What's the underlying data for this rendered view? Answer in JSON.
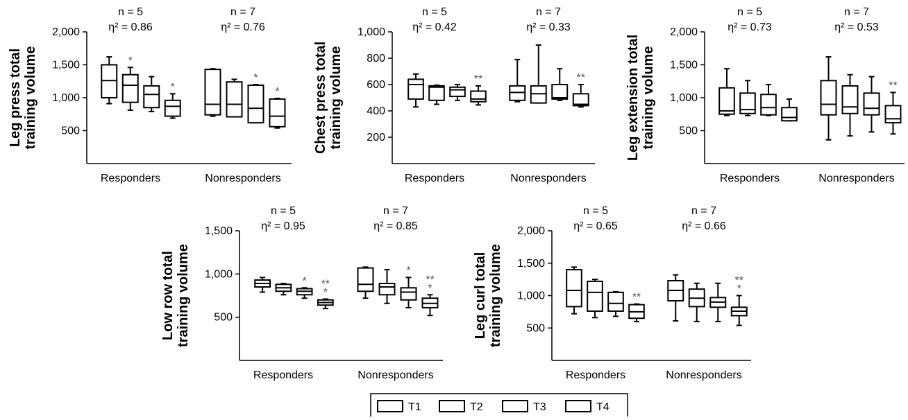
{
  "chart_data": [
    {
      "type": "box",
      "ylabel": [
        "Leg press total",
        "training volume"
      ],
      "yticks": [
        500,
        1000,
        1500,
        2000
      ],
      "ytick_labels": [
        "500",
        "1,000",
        "1,500",
        "2,000"
      ],
      "ylim": [
        0,
        2000
      ],
      "groups": [
        {
          "name": "Responders",
          "n_label": "n = 5",
          "eta_label": "η² = 0.86",
          "boxes": [
            {
              "series": "T1",
              "min": 910,
              "q1": 1000,
              "median": 1260,
              "q3": 1500,
              "max": 1620,
              "marks": []
            },
            {
              "series": "T2",
              "min": 810,
              "q1": 930,
              "median": 1190,
              "q3": 1350,
              "max": 1460,
              "marks": [
                "*"
              ]
            },
            {
              "series": "T3",
              "min": 790,
              "q1": 850,
              "median": 1050,
              "q3": 1180,
              "max": 1320,
              "marks": []
            },
            {
              "series": "T4",
              "min": 690,
              "q1": 720,
              "median": 870,
              "q3": 960,
              "max": 1060,
              "marks": [
                "*"
              ]
            }
          ]
        },
        {
          "name": "Nonresponders",
          "n_label": "n = 7",
          "eta_label": "η² = 0.76",
          "boxes": [
            {
              "series": "T1",
              "min": 720,
              "q1": 740,
              "median": 900,
              "q3": 1430,
              "max": 1440,
              "marks": []
            },
            {
              "series": "T2",
              "min": 710,
              "q1": 710,
              "median": 900,
              "q3": 1240,
              "max": 1280,
              "marks": []
            },
            {
              "series": "T3",
              "min": 620,
              "q1": 620,
              "median": 840,
              "q3": 1190,
              "max": 1200,
              "marks": [
                "*"
              ]
            },
            {
              "series": "T4",
              "min": 540,
              "q1": 560,
              "median": 720,
              "q3": 980,
              "max": 990,
              "marks": [
                "*"
              ]
            }
          ]
        }
      ]
    },
    {
      "type": "box",
      "ylabel": [
        "Chest press total",
        "training volume"
      ],
      "yticks": [
        200,
        400,
        600,
        800,
        1000
      ],
      "ytick_labels": [
        "200",
        "400",
        "600",
        "800",
        "1,000"
      ],
      "ylim": [
        0,
        1000
      ],
      "groups": [
        {
          "name": "Responders",
          "n_label": "n = 5",
          "eta_label": "η² = 0.42",
          "boxes": [
            {
              "series": "T1",
              "min": 430,
              "q1": 490,
              "median": 600,
              "q3": 640,
              "max": 680,
              "marks": []
            },
            {
              "series": "T2",
              "min": 450,
              "q1": 480,
              "median": 580,
              "q3": 590,
              "max": 595,
              "marks": []
            },
            {
              "series": "T3",
              "min": 480,
              "q1": 510,
              "median": 560,
              "q3": 580,
              "max": 600,
              "marks": []
            },
            {
              "series": "T4",
              "min": 445,
              "q1": 470,
              "median": 490,
              "q3": 550,
              "max": 590,
              "marks": [
                "**"
              ]
            }
          ]
        },
        {
          "name": "Nonresponders",
          "n_label": "n = 7",
          "eta_label": "η² = 0.33",
          "boxes": [
            {
              "series": "T1",
              "min": 470,
              "q1": 480,
              "median": 540,
              "q3": 590,
              "max": 790,
              "marks": []
            },
            {
              "series": "T2",
              "min": 460,
              "q1": 460,
              "median": 530,
              "q3": 590,
              "max": 900,
              "marks": []
            },
            {
              "series": "T3",
              "min": 480,
              "q1": 490,
              "median": 500,
              "q3": 600,
              "max": 720,
              "marks": []
            },
            {
              "series": "T4",
              "min": 430,
              "q1": 440,
              "median": 450,
              "q3": 530,
              "max": 600,
              "marks": [
                "**"
              ]
            }
          ]
        }
      ]
    },
    {
      "type": "box",
      "ylabel": [
        "Leg extension total",
        "training volume"
      ],
      "yticks": [
        500,
        1000,
        1500,
        2000
      ],
      "ytick_labels": [
        "500",
        "1,000",
        "1,500",
        "2,000"
      ],
      "ylim": [
        0,
        2000
      ],
      "groups": [
        {
          "name": "Responders",
          "n_label": "n = 5",
          "eta_label": "η² = 0.73",
          "boxes": [
            {
              "series": "T1",
              "min": 730,
              "q1": 750,
              "median": 800,
              "q3": 1150,
              "max": 1440,
              "marks": []
            },
            {
              "series": "T2",
              "min": 730,
              "q1": 760,
              "median": 820,
              "q3": 1070,
              "max": 1260,
              "marks": []
            },
            {
              "series": "T3",
              "min": 730,
              "q1": 740,
              "median": 850,
              "q3": 1050,
              "max": 1200,
              "marks": []
            },
            {
              "series": "T4",
              "min": 650,
              "q1": 650,
              "median": 700,
              "q3": 850,
              "max": 980,
              "marks": []
            }
          ]
        },
        {
          "name": "Nonresponders",
          "n_label": "n = 7",
          "eta_label": "η² = 0.53",
          "boxes": [
            {
              "series": "T1",
              "min": 360,
              "q1": 740,
              "median": 900,
              "q3": 1260,
              "max": 1620,
              "marks": []
            },
            {
              "series": "T2",
              "min": 420,
              "q1": 760,
              "median": 860,
              "q3": 1180,
              "max": 1350,
              "marks": []
            },
            {
              "series": "T3",
              "min": 480,
              "q1": 740,
              "median": 840,
              "q3": 1070,
              "max": 1320,
              "marks": []
            },
            {
              "series": "T4",
              "min": 450,
              "q1": 620,
              "median": 680,
              "q3": 880,
              "max": 1080,
              "marks": [
                "**"
              ]
            }
          ]
        }
      ]
    },
    {
      "type": "box",
      "ylabel": [
        "Low row total",
        "training volume"
      ],
      "yticks": [
        500,
        1000,
        1500
      ],
      "ytick_labels": [
        "500",
        "1,000",
        "1,500"
      ],
      "ylim": [
        0,
        1500
      ],
      "groups": [
        {
          "name": "Responders",
          "n_label": "n = 5",
          "eta_label": "η² = 0.95",
          "boxes": [
            {
              "series": "T1",
              "min": 790,
              "q1": 850,
              "median": 890,
              "q3": 930,
              "max": 960,
              "marks": []
            },
            {
              "series": "T2",
              "min": 760,
              "q1": 800,
              "median": 840,
              "q3": 880,
              "max": 890,
              "marks": []
            },
            {
              "series": "T3",
              "min": 720,
              "q1": 760,
              "median": 800,
              "q3": 830,
              "max": 840,
              "marks": [
                "*"
              ]
            },
            {
              "series": "T4",
              "min": 600,
              "q1": 640,
              "median": 670,
              "q3": 700,
              "max": 710,
              "marks": [
                "**",
                "*"
              ]
            }
          ]
        },
        {
          "name": "Nonresponders",
          "n_label": "n = 7",
          "eta_label": "η² = 0.85",
          "boxes": [
            {
              "series": "T1",
              "min": 720,
              "q1": 800,
              "median": 880,
              "q3": 1070,
              "max": 1080,
              "marks": []
            },
            {
              "series": "T2",
              "min": 660,
              "q1": 760,
              "median": 850,
              "q3": 890,
              "max": 1050,
              "marks": []
            },
            {
              "series": "T3",
              "min": 610,
              "q1": 700,
              "median": 790,
              "q3": 840,
              "max": 960,
              "marks": [
                "*"
              ]
            },
            {
              "series": "T4",
              "min": 520,
              "q1": 610,
              "median": 660,
              "q3": 720,
              "max": 760,
              "marks": [
                "**",
                "*"
              ]
            }
          ]
        }
      ]
    },
    {
      "type": "box",
      "ylabel": [
        "Leg curl total",
        "training volume"
      ],
      "yticks": [
        500,
        1000,
        1500,
        2000
      ],
      "ytick_labels": [
        "500",
        "1,000",
        "1,500",
        "2,000"
      ],
      "ylim": [
        0,
        2000
      ],
      "groups": [
        {
          "name": "Responders",
          "n_label": "n = 5",
          "eta_label": "η² = 0.65",
          "boxes": [
            {
              "series": "T1",
              "min": 720,
              "q1": 830,
              "median": 1080,
              "q3": 1400,
              "max": 1440,
              "marks": []
            },
            {
              "series": "T2",
              "min": 660,
              "q1": 760,
              "median": 1050,
              "q3": 1220,
              "max": 1250,
              "marks": []
            },
            {
              "series": "T3",
              "min": 680,
              "q1": 760,
              "median": 880,
              "q3": 1050,
              "max": 1060,
              "marks": []
            },
            {
              "series": "T4",
              "min": 600,
              "q1": 650,
              "median": 750,
              "q3": 860,
              "max": 870,
              "marks": [
                "**"
              ]
            }
          ]
        },
        {
          "name": "Nonresponders",
          "n_label": "n = 7",
          "eta_label": "η² = 0.66",
          "boxes": [
            {
              "series": "T1",
              "min": 610,
              "q1": 920,
              "median": 1080,
              "q3": 1230,
              "max": 1320,
              "marks": []
            },
            {
              "series": "T2",
              "min": 600,
              "q1": 830,
              "median": 960,
              "q3": 1100,
              "max": 1190,
              "marks": []
            },
            {
              "series": "T3",
              "min": 600,
              "q1": 820,
              "median": 900,
              "q3": 970,
              "max": 1190,
              "marks": []
            },
            {
              "series": "T4",
              "min": 540,
              "q1": 690,
              "median": 760,
              "q3": 820,
              "max": 1000,
              "marks": [
                "**",
                "*"
              ]
            }
          ]
        }
      ]
    }
  ],
  "legend": {
    "items": [
      {
        "label": "T1"
      },
      {
        "label": "T2"
      },
      {
        "label": "T3"
      },
      {
        "label": "T4"
      }
    ]
  },
  "colors": {
    "stroke": "#000000",
    "background": "#ffffff",
    "mark": "#555555"
  }
}
